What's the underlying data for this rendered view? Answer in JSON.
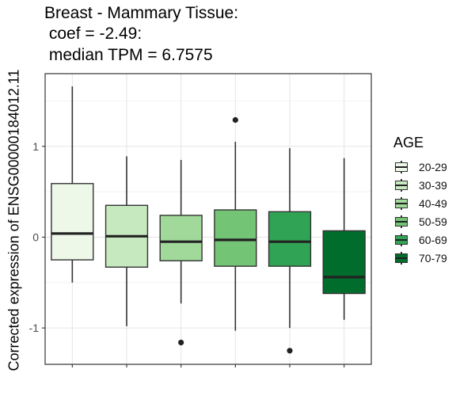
{
  "chart_data": {
    "type": "box",
    "title_lines": [
      "Breast - Mammary Tissue:",
      " coef = -2.49:",
      " median TPM = 6.7575"
    ],
    "ylabel": "Corrected expression of ENSG00000184012.11",
    "xlabel": "",
    "ylim": [
      -1.4,
      1.8
    ],
    "yticks": [
      -1,
      0,
      1
    ],
    "grid": true,
    "legend": {
      "title": "AGE",
      "placement": "right"
    },
    "categories": [
      "20-29",
      "30-39",
      "40-49",
      "50-59",
      "60-69",
      "70-79"
    ],
    "colors": [
      "#edf8e9",
      "#c7e9c0",
      "#a1d99b",
      "#74c476",
      "#31a354",
      "#006d2c"
    ],
    "boxes": [
      {
        "name": "20-29",
        "whisker_low": -0.5,
        "q1": -0.25,
        "median": 0.04,
        "q3": 0.59,
        "whisker_high": 1.66,
        "outliers": []
      },
      {
        "name": "30-39",
        "whisker_low": -0.98,
        "q1": -0.33,
        "median": 0.01,
        "q3": 0.35,
        "whisker_high": 0.89,
        "outliers": []
      },
      {
        "name": "40-49",
        "whisker_low": -0.73,
        "q1": -0.26,
        "median": -0.05,
        "q3": 0.24,
        "whisker_high": 0.85,
        "outliers": [
          -1.16
        ]
      },
      {
        "name": "50-59",
        "whisker_low": -1.03,
        "q1": -0.32,
        "median": -0.03,
        "q3": 0.3,
        "whisker_high": 1.05,
        "outliers": [
          1.29
        ]
      },
      {
        "name": "60-69",
        "whisker_low": -1.0,
        "q1": -0.32,
        "median": -0.05,
        "q3": 0.28,
        "whisker_high": 0.98,
        "outliers": [
          -1.25
        ]
      },
      {
        "name": "70-79",
        "whisker_low": -0.91,
        "q1": -0.62,
        "median": -0.44,
        "q3": 0.07,
        "whisker_high": 0.87,
        "outliers": []
      }
    ]
  }
}
